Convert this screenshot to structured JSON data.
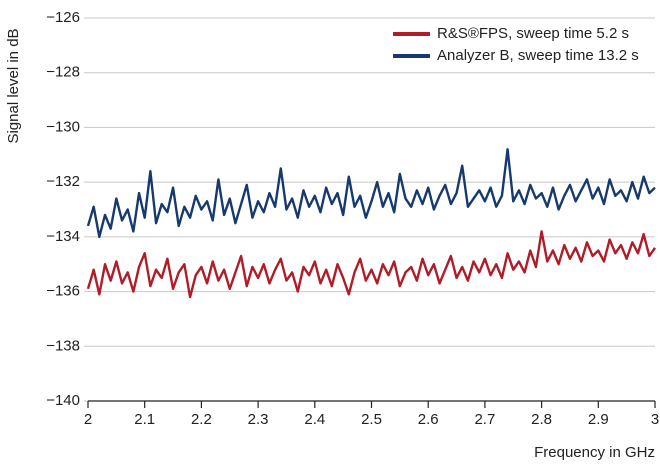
{
  "chart_data": {
    "type": "line",
    "xlabel": "Frequency in GHz",
    "ylabel": "Signal level in dB",
    "x": [
      2,
      2.01,
      2.02,
      2.03,
      2.04,
      2.05,
      2.06,
      2.07,
      2.08,
      2.09,
      2.1,
      2.11,
      2.12,
      2.13,
      2.14,
      2.15,
      2.16,
      2.17,
      2.18,
      2.19,
      2.2,
      2.21,
      2.22,
      2.23,
      2.24,
      2.25,
      2.26,
      2.27,
      2.28,
      2.29,
      2.3,
      2.31,
      2.32,
      2.33,
      2.34,
      2.35,
      2.36,
      2.37,
      2.38,
      2.39,
      2.4,
      2.41,
      2.42,
      2.43,
      2.44,
      2.45,
      2.46,
      2.47,
      2.48,
      2.49,
      2.5,
      2.51,
      2.52,
      2.53,
      2.54,
      2.55,
      2.56,
      2.57,
      2.58,
      2.59,
      2.6,
      2.61,
      2.62,
      2.63,
      2.64,
      2.65,
      2.66,
      2.67,
      2.68,
      2.69,
      2.7,
      2.71,
      2.72,
      2.73,
      2.74,
      2.75,
      2.76,
      2.77,
      2.78,
      2.79,
      2.8,
      2.81,
      2.82,
      2.83,
      2.84,
      2.85,
      2.86,
      2.87,
      2.88,
      2.89,
      2.9,
      2.91,
      2.92,
      2.93,
      2.94,
      2.95,
      2.96,
      2.97,
      2.98,
      2.99,
      3
    ],
    "series": [
      {
        "name": "R&S®FPS, sweep time 5.2 s",
        "color": "#b01c28",
        "values": [
          -135.9,
          -135.2,
          -136.1,
          -135.0,
          -135.6,
          -134.9,
          -135.7,
          -135.3,
          -136.0,
          -135.1,
          -134.6,
          -135.8,
          -135.2,
          -135.5,
          -134.8,
          -135.9,
          -135.3,
          -135.0,
          -136.2,
          -135.4,
          -135.1,
          -135.7,
          -134.9,
          -135.6,
          -135.2,
          -135.9,
          -135.3,
          -134.7,
          -135.8,
          -135.1,
          -135.5,
          -135.0,
          -135.7,
          -135.2,
          -134.8,
          -135.6,
          -135.3,
          -136.0,
          -135.1,
          -135.4,
          -134.9,
          -135.7,
          -135.2,
          -135.8,
          -135.0,
          -135.5,
          -136.1,
          -135.3,
          -134.8,
          -135.6,
          -135.2,
          -135.7,
          -135.0,
          -135.4,
          -134.9,
          -135.8,
          -135.3,
          -135.1,
          -135.6,
          -134.8,
          -135.4,
          -135.0,
          -135.7,
          -135.2,
          -134.7,
          -135.5,
          -135.1,
          -135.6,
          -134.9,
          -135.3,
          -134.8,
          -135.4,
          -135.0,
          -135.5,
          -134.6,
          -135.2,
          -134.9,
          -135.3,
          -134.5,
          -135.1,
          -133.8,
          -134.9,
          -134.5,
          -135.0,
          -134.3,
          -134.8,
          -134.4,
          -134.9,
          -134.2,
          -134.7,
          -134.5,
          -134.9,
          -134.1,
          -134.6,
          -134.3,
          -134.8,
          -134.2,
          -134.6,
          -133.9,
          -134.7,
          -134.4
        ]
      },
      {
        "name": "Analyzer B, sweep time 13.2 s",
        "color": "#163a6e",
        "values": [
          -133.6,
          -132.9,
          -134.0,
          -133.2,
          -133.7,
          -132.6,
          -133.4,
          -133.0,
          -133.8,
          -132.4,
          -133.3,
          -131.6,
          -133.5,
          -132.8,
          -133.1,
          -132.2,
          -133.6,
          -132.9,
          -133.3,
          -132.5,
          -133.0,
          -132.7,
          -133.4,
          -131.9,
          -133.2,
          -132.6,
          -133.5,
          -132.8,
          -132.1,
          -133.3,
          -132.7,
          -133.1,
          -132.4,
          -132.9,
          -131.5,
          -133.0,
          -132.6,
          -133.3,
          -132.3,
          -132.9,
          -132.5,
          -133.1,
          -132.2,
          -132.8,
          -132.4,
          -133.2,
          -131.8,
          -132.9,
          -132.5,
          -133.3,
          -132.7,
          -132.0,
          -132.9,
          -132.4,
          -133.1,
          -131.7,
          -132.6,
          -132.9,
          -132.3,
          -132.8,
          -132.2,
          -133.0,
          -132.5,
          -132.1,
          -132.8,
          -132.4,
          -131.4,
          -132.9,
          -132.6,
          -132.3,
          -132.7,
          -132.2,
          -132.9,
          -132.5,
          -130.8,
          -132.7,
          -132.3,
          -132.8,
          -132.1,
          -132.6,
          -132.4,
          -132.9,
          -132.2,
          -133.0,
          -132.5,
          -132.1,
          -132.7,
          -132.3,
          -131.9,
          -132.6,
          -132.2,
          -132.8,
          -131.9,
          -132.5,
          -132.3,
          -132.7,
          -132.0,
          -132.6,
          -131.8,
          -132.4,
          -132.2
        ]
      }
    ],
    "xlim": [
      2,
      3
    ],
    "ylim": [
      -140,
      -126
    ],
    "xticks": [
      2,
      2.1,
      2.2,
      2.3,
      2.4,
      2.5,
      2.6,
      2.7,
      2.8,
      2.9,
      3
    ],
    "yticks": [
      {
        "value": -126,
        "label": "−126"
      },
      {
        "value": -128,
        "label": "−128"
      },
      {
        "value": -130,
        "label": "−130"
      },
      {
        "value": -132,
        "label": "−132"
      },
      {
        "value": -134,
        "label": "−134"
      },
      {
        "value": -136,
        "label": "−136"
      },
      {
        "value": -138,
        "label": "−138"
      },
      {
        "value": -140,
        "label": "−140"
      }
    ],
    "grid": true,
    "legend": "upper right"
  }
}
